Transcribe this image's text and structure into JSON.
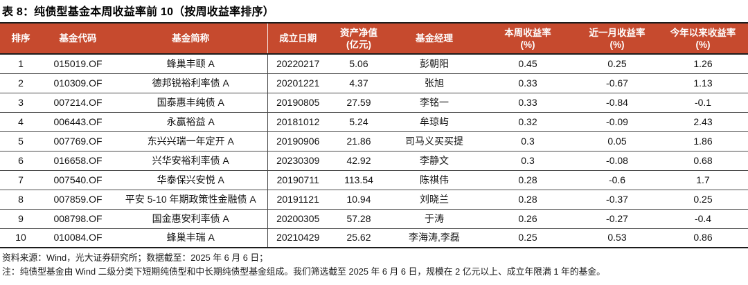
{
  "page": {
    "title": "表 8：纯债型基金本周收益率前 10（按周收益率排序）"
  },
  "colors": {
    "header_bg": "#C64A2E",
    "header_text": "#FFFFFF",
    "border_dark": "#1C1C1C",
    "row_line": "#4A4A4A"
  },
  "table": {
    "columns": [
      {
        "key": "rank",
        "label": "排序",
        "sub": ""
      },
      {
        "key": "code",
        "label": "基金代码",
        "sub": ""
      },
      {
        "key": "name",
        "label": "基金简称",
        "sub": ""
      },
      {
        "key": "inception",
        "label": "成立日期",
        "sub": ""
      },
      {
        "key": "nav",
        "label": "资产净值",
        "sub": "(亿元)"
      },
      {
        "key": "manager",
        "label": "基金经理",
        "sub": ""
      },
      {
        "key": "week",
        "label": "本周收益率",
        "sub": "(%)"
      },
      {
        "key": "month",
        "label": "近一月收益率",
        "sub": "(%)"
      },
      {
        "key": "ytd",
        "label": "今年以来收益率",
        "sub": "(%)"
      }
    ],
    "rows": [
      [
        "1",
        "015019.OF",
        "蜂巢丰颐 A",
        "20220217",
        "5.06",
        "彭朝阳",
        "0.45",
        "0.25",
        "1.26"
      ],
      [
        "2",
        "010309.OF",
        "德邦锐裕利率债 A",
        "20201221",
        "4.37",
        "张旭",
        "0.33",
        "-0.67",
        "1.13"
      ],
      [
        "3",
        "007214.OF",
        "国泰惠丰纯债 A",
        "20190805",
        "27.59",
        "李铭一",
        "0.33",
        "-0.84",
        "-0.1"
      ],
      [
        "4",
        "006443.OF",
        "永赢裕益 A",
        "20181012",
        "5.24",
        "牟琼屿",
        "0.32",
        "-0.09",
        "2.43"
      ],
      [
        "5",
        "007769.OF",
        "东兴兴瑞一年定开 A",
        "20190906",
        "21.86",
        "司马义买买提",
        "0.3",
        "0.05",
        "1.86"
      ],
      [
        "6",
        "016658.OF",
        "兴华安裕利率债 A",
        "20230309",
        "42.92",
        "李静文",
        "0.3",
        "-0.08",
        "0.68"
      ],
      [
        "7",
        "007540.OF",
        "华泰保兴安悦 A",
        "20190711",
        "113.54",
        "陈祺伟",
        "0.28",
        "-0.6",
        "1.7"
      ],
      [
        "8",
        "007859.OF",
        "平安 5-10 年期政策性金融债 A",
        "20191121",
        "10.94",
        "刘晓兰",
        "0.28",
        "-0.37",
        "0.25"
      ],
      [
        "9",
        "008798.OF",
        "国金惠安利率债 A",
        "20200305",
        "57.28",
        "于涛",
        "0.26",
        "-0.27",
        "-0.4"
      ],
      [
        "10",
        "010084.OF",
        "蜂巢丰瑞 A",
        "20210429",
        "25.62",
        "李海涛,李磊",
        "0.25",
        "0.53",
        "0.86"
      ]
    ]
  },
  "footer": {
    "source": "资料来源：Wind，光大证券研究所；数据截至：2025 年 6 月 6 日；",
    "note": "注：纯债型基金由 Wind 二级分类下短期纯债型和中长期纯债型基金组成。我们筛选截至 2025 年 6 月 6 日，规模在 2 亿元以上、成立年限满 1 年的基金。"
  }
}
